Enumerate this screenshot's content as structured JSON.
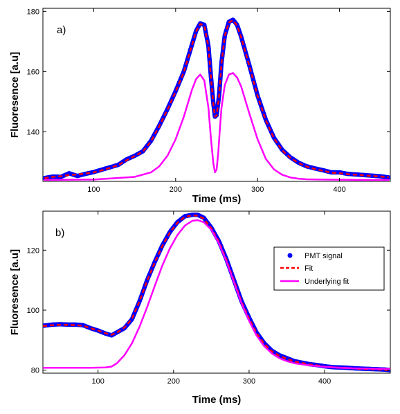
{
  "chart_data": [
    {
      "type": "line",
      "panel_label": "a)",
      "xlabel": "Time (ms)",
      "ylabel": "Fluoresence [a.u]",
      "xlim": [
        38,
        462
      ],
      "ylim": [
        123.5,
        181
      ],
      "xticks": [
        100,
        200,
        300,
        400
      ],
      "yticks": [
        140,
        160,
        180
      ],
      "grid": false,
      "series": [
        {
          "role": "pmt-signal",
          "style": "markers",
          "color": "#0000ff",
          "x": [
            40,
            50,
            60,
            70,
            80,
            90,
            100,
            110,
            120,
            130,
            140,
            150,
            160,
            170,
            180,
            190,
            200,
            210,
            220,
            225,
            230,
            235,
            240,
            243,
            246,
            248,
            250,
            253,
            256,
            260,
            265,
            270,
            275,
            280,
            290,
            300,
            310,
            320,
            330,
            340,
            350,
            360,
            370,
            380,
            390,
            400,
            410,
            420,
            430,
            440,
            450,
            460
          ],
          "y": [
            124.6,
            125.1,
            125.0,
            126.2,
            125.3,
            126.0,
            126.6,
            127.4,
            128.2,
            129.0,
            130.8,
            132.0,
            133.5,
            137.0,
            142.0,
            147.5,
            153.5,
            160.0,
            169.0,
            173.5,
            176.0,
            175.5,
            168.5,
            158.5,
            149.5,
            145.0,
            145.5,
            152.0,
            163.0,
            172.0,
            176.5,
            177.2,
            175.5,
            171.5,
            162.0,
            152.0,
            144.0,
            138.0,
            134.0,
            131.5,
            129.7,
            128.5,
            127.8,
            127.2,
            126.5,
            126.5,
            126.0,
            125.8,
            125.6,
            125.4,
            125.2,
            124.8
          ]
        },
        {
          "role": "fit",
          "style": "dashed",
          "color": "#ff0000",
          "x": [
            40,
            50,
            60,
            70,
            80,
            90,
            100,
            110,
            120,
            130,
            140,
            150,
            160,
            170,
            180,
            190,
            200,
            210,
            220,
            225,
            230,
            235,
            240,
            243,
            246,
            248,
            250,
            253,
            256,
            260,
            265,
            270,
            275,
            280,
            290,
            300,
            310,
            320,
            330,
            340,
            350,
            360,
            370,
            380,
            390,
            400,
            410,
            420,
            430,
            440,
            450,
            460
          ],
          "y": [
            124.6,
            125.0,
            125.2,
            125.6,
            125.8,
            126.1,
            126.5,
            127.2,
            128.0,
            128.9,
            130.5,
            131.9,
            133.4,
            136.8,
            141.8,
            147.3,
            153.3,
            159.8,
            168.8,
            173.3,
            175.8,
            175.2,
            168.3,
            158.3,
            149.3,
            145.0,
            145.3,
            151.8,
            162.8,
            171.8,
            176.3,
            177.0,
            175.3,
            171.3,
            161.8,
            151.8,
            143.8,
            137.8,
            133.8,
            131.3,
            129.6,
            128.4,
            127.6,
            127.0,
            126.4,
            126.2,
            125.9,
            125.7,
            125.5,
            125.3,
            125.1,
            124.9
          ]
        },
        {
          "role": "underlying-fit",
          "style": "solid",
          "color": "#ff00ff",
          "x": [
            40,
            100,
            150,
            170,
            180,
            190,
            200,
            210,
            220,
            225,
            230,
            235,
            240,
            243,
            246,
            248,
            250,
            252,
            254,
            256,
            260,
            265,
            270,
            275,
            280,
            290,
            300,
            310,
            320,
            330,
            340,
            350,
            360,
            380,
            420,
            460
          ],
          "y": [
            124.0,
            124.1,
            125.0,
            126.5,
            128.5,
            132.0,
            137.5,
            145.0,
            154.0,
            157.5,
            159.0,
            157.0,
            148.0,
            138.0,
            129.5,
            126.5,
            127.5,
            133.0,
            141.0,
            148.0,
            155.5,
            159.0,
            159.5,
            158.0,
            155.0,
            146.0,
            137.5,
            131.0,
            127.5,
            125.7,
            124.8,
            124.4,
            124.2,
            124.1,
            124.0,
            124.0
          ]
        }
      ]
    },
    {
      "type": "line",
      "panel_label": "b)",
      "xlabel": "Time (ms)",
      "ylabel": "Fluoresence [a.u]",
      "xlim": [
        27,
        487
      ],
      "ylim": [
        79,
        133
      ],
      "xticks": [
        100,
        200,
        300,
        400
      ],
      "yticks": [
        80,
        100,
        120
      ],
      "grid": false,
      "legend_position": "top-right",
      "series": [
        {
          "name": "PMT signal",
          "role": "pmt-signal",
          "style": "markers",
          "color": "#0000ff",
          "x": [
            27,
            40,
            50,
            60,
            70,
            80,
            90,
            100,
            110,
            118,
            125,
            135,
            145,
            155,
            165,
            175,
            185,
            195,
            205,
            215,
            225,
            232,
            240,
            250,
            260,
            270,
            280,
            290,
            300,
            310,
            320,
            330,
            340,
            350,
            360,
            370,
            380,
            390,
            400,
            410,
            420,
            430,
            440,
            450,
            460,
            470,
            480,
            487
          ],
          "y": [
            94.8,
            95.2,
            95.3,
            95.2,
            95.2,
            95.0,
            94.0,
            93.2,
            92.2,
            91.6,
            92.6,
            94.0,
            97.0,
            103.0,
            110.0,
            116.0,
            121.5,
            126.0,
            129.3,
            131.3,
            131.8,
            131.8,
            130.8,
            127.5,
            123.0,
            117.0,
            110.0,
            103.0,
            97.5,
            92.5,
            89.0,
            86.5,
            85.0,
            84.0,
            83.0,
            82.5,
            82.0,
            81.7,
            81.3,
            81.0,
            80.9,
            80.8,
            80.6,
            80.5,
            80.4,
            80.3,
            80.2,
            80.0
          ]
        },
        {
          "name": "Fit",
          "role": "fit",
          "style": "dashed",
          "color": "#ff0000",
          "x": [
            27,
            40,
            50,
            60,
            70,
            80,
            90,
            100,
            110,
            118,
            125,
            135,
            145,
            155,
            165,
            175,
            185,
            195,
            205,
            215,
            225,
            232,
            240,
            250,
            260,
            270,
            280,
            290,
            300,
            310,
            320,
            330,
            340,
            350,
            360,
            370,
            380,
            390,
            400,
            410,
            420,
            430,
            440,
            450,
            460,
            470,
            480,
            487
          ],
          "y": [
            94.7,
            95.0,
            95.1,
            95.1,
            95.0,
            94.8,
            94.0,
            93.2,
            92.3,
            91.8,
            92.5,
            94.2,
            97.2,
            103.0,
            109.8,
            115.8,
            121.3,
            125.8,
            129.1,
            131.1,
            131.6,
            131.5,
            130.5,
            127.3,
            122.8,
            116.8,
            109.8,
            102.8,
            97.2,
            92.3,
            88.8,
            86.3,
            84.8,
            83.8,
            82.9,
            82.4,
            81.9,
            81.6,
            81.2,
            81.0,
            80.8,
            80.7,
            80.5,
            80.4,
            80.3,
            80.2,
            80.1,
            80.0
          ]
        },
        {
          "name": "Underlying fit",
          "role": "underlying-fit",
          "style": "solid",
          "color": "#ff00ff",
          "x": [
            27,
            60,
            90,
            110,
            118,
            125,
            135,
            145,
            155,
            165,
            175,
            185,
            195,
            205,
            215,
            225,
            232,
            240,
            250,
            260,
            270,
            280,
            290,
            300,
            310,
            320,
            330,
            340,
            350,
            360,
            380,
            400,
            420,
            440,
            460,
            480,
            487
          ],
          "y": [
            80.8,
            80.8,
            80.8,
            80.9,
            81.2,
            82.3,
            85.0,
            89.0,
            94.5,
            101.0,
            108.0,
            114.8,
            120.5,
            125.0,
            128.2,
            129.8,
            130.0,
            129.3,
            126.8,
            122.3,
            116.3,
            109.3,
            102.3,
            96.5,
            91.5,
            88.0,
            85.6,
            84.0,
            83.0,
            82.3,
            81.6,
            81.1,
            80.8,
            80.6,
            80.5,
            80.4,
            80.4
          ]
        }
      ]
    }
  ]
}
